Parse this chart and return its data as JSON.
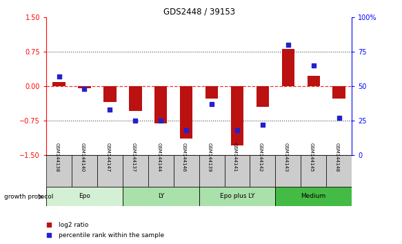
{
  "title": "GDS2448 / 39153",
  "samples": [
    "GSM144138",
    "GSM144140",
    "GSM144147",
    "GSM144137",
    "GSM144144",
    "GSM144146",
    "GSM144139",
    "GSM144141",
    "GSM144142",
    "GSM144143",
    "GSM144145",
    "GSM144148"
  ],
  "log2_ratio": [
    0.08,
    -0.05,
    -0.35,
    -0.55,
    -0.82,
    -1.15,
    -0.28,
    -1.3,
    -0.45,
    0.8,
    0.22,
    -0.28
  ],
  "percentile": [
    57,
    48,
    33,
    25,
    25,
    18,
    37,
    18,
    22,
    80,
    65,
    27
  ],
  "group_configs": [
    {
      "name": "Epo",
      "start": 0,
      "end": 3,
      "color": "#d4f0d4"
    },
    {
      "name": "LY",
      "start": 3,
      "end": 6,
      "color": "#aae0aa"
    },
    {
      "name": "Epo plus LY",
      "start": 6,
      "end": 9,
      "color": "#aae0aa"
    },
    {
      "name": "Medium",
      "start": 9,
      "end": 12,
      "color": "#44bb44"
    }
  ],
  "bar_color": "#bb1111",
  "dot_color": "#2222cc",
  "zero_line_color": "#ee3333",
  "dotted_line_color": "#444444",
  "bg_color": "#ffffff",
  "sample_bg": "#cccccc",
  "ylim_left": [
    -1.5,
    1.5
  ],
  "ylim_right": [
    0,
    100
  ],
  "yticks_left": [
    -1.5,
    -0.75,
    0.0,
    0.75,
    1.5
  ],
  "yticks_right": [
    0,
    25,
    50,
    75,
    100
  ],
  "legend_log2": "log2 ratio",
  "legend_pct": "percentile rank within the sample",
  "group_label": "growth protocol"
}
